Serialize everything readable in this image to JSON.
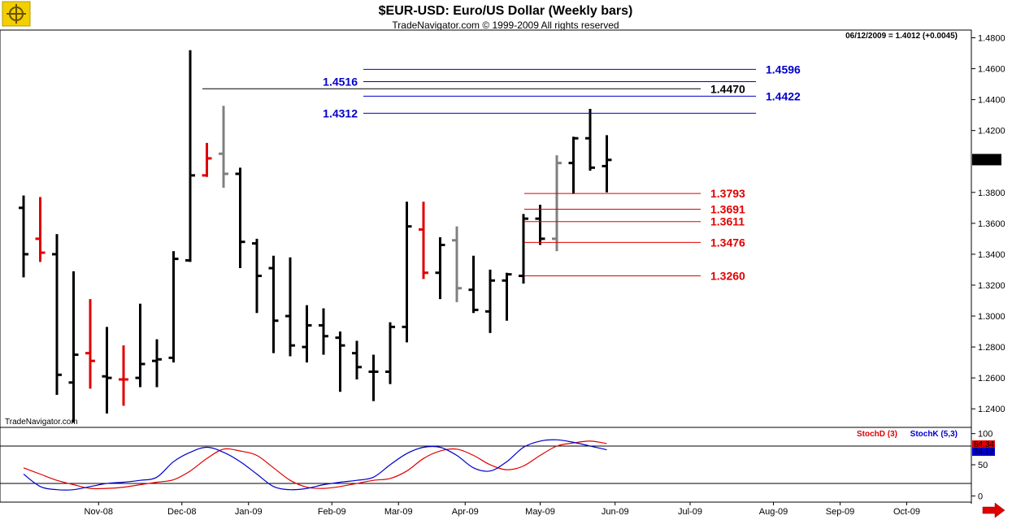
{
  "header": {
    "title": "$EUR-USD:  Euro/US Dollar  (Weekly bars)",
    "copyright": "TradeNavigator.com © 1999-2009 All rights reserved",
    "quote": "06/12/2009 = 1.4012 (+0.0045)",
    "watermark": "TradeNavigator.com"
  },
  "icons": {
    "logo": "ship-wheel-icon",
    "scroll": "red-arrow-right-icon"
  },
  "colors": {
    "up_bar": "#000000",
    "down_bar": "#e00000",
    "inside_bar": "#808080",
    "support_level": "#e00000",
    "resistance_level": "#0000cc",
    "stoch_d": "#e00000",
    "stoch_k": "#0000cc"
  },
  "chart_data": [
    {
      "type": "ohlc",
      "title": "$EUR-USD:  Euro/US Dollar  (Weekly bars)",
      "ylim": [
        1.228,
        1.485
      ],
      "yticks": [
        "1.4800",
        "1.4600",
        "1.4400",
        "1.4200",
        "1.4012",
        "1.3800",
        "1.3600",
        "1.3400",
        "1.3200",
        "1.3000",
        "1.2800",
        "1.2600",
        "1.2400"
      ],
      "ytick_values": [
        1.48,
        1.46,
        1.44,
        1.42,
        1.4012,
        1.38,
        1.36,
        1.34,
        1.32,
        1.3,
        1.28,
        1.26,
        1.24
      ],
      "last_price": "1.4012",
      "xticks": [
        "Nov-08",
        "Dec-08",
        "Jan-09",
        "Feb-09",
        "Mar-09",
        "Apr-09",
        "May-09",
        "Jun-09",
        "Jul-09",
        "Aug-09",
        "Sep-09",
        "Oct-09"
      ],
      "xtick_bar_index": [
        4.5,
        9.5,
        13.5,
        18.5,
        22.5,
        26.5,
        31,
        35.5,
        40,
        45,
        49,
        53
      ],
      "bars": [
        {
          "o": 1.37,
          "h": 1.378,
          "l": 1.325,
          "c": 1.34,
          "color": "black"
        },
        {
          "o": 1.35,
          "h": 1.377,
          "l": 1.335,
          "c": 1.341,
          "color": "red"
        },
        {
          "o": 1.34,
          "h": 1.353,
          "l": 1.249,
          "c": 1.262,
          "color": "black"
        },
        {
          "o": 1.257,
          "h": 1.329,
          "l": 1.231,
          "c": 1.275,
          "color": "black"
        },
        {
          "o": 1.276,
          "h": 1.311,
          "l": 1.253,
          "c": 1.271,
          "color": "red"
        },
        {
          "o": 1.261,
          "h": 1.293,
          "l": 1.237,
          "c": 1.26,
          "color": "black"
        },
        {
          "o": 1.259,
          "h": 1.281,
          "l": 1.242,
          "c": 1.259,
          "color": "red"
        },
        {
          "o": 1.26,
          "h": 1.308,
          "l": 1.254,
          "c": 1.269,
          "color": "black"
        },
        {
          "o": 1.271,
          "h": 1.285,
          "l": 1.254,
          "c": 1.272,
          "color": "black"
        },
        {
          "o": 1.273,
          "h": 1.342,
          "l": 1.27,
          "c": 1.337,
          "color": "black"
        },
        {
          "o": 1.336,
          "h": 1.472,
          "l": 1.335,
          "c": 1.391,
          "color": "black"
        },
        {
          "o": 1.391,
          "h": 1.412,
          "l": 1.39,
          "c": 1.402,
          "color": "red"
        },
        {
          "o": 1.405,
          "h": 1.436,
          "l": 1.383,
          "c": 1.392,
          "color": "gray"
        },
        {
          "o": 1.392,
          "h": 1.396,
          "l": 1.331,
          "c": 1.348,
          "color": "black"
        },
        {
          "o": 1.347,
          "h": 1.35,
          "l": 1.302,
          "c": 1.326,
          "color": "black"
        },
        {
          "o": 1.331,
          "h": 1.339,
          "l": 1.276,
          "c": 1.297,
          "color": "black"
        },
        {
          "o": 1.3,
          "h": 1.338,
          "l": 1.274,
          "c": 1.281,
          "color": "black"
        },
        {
          "o": 1.28,
          "h": 1.307,
          "l": 1.27,
          "c": 1.294,
          "color": "black"
        },
        {
          "o": 1.294,
          "h": 1.305,
          "l": 1.275,
          "c": 1.287,
          "color": "black"
        },
        {
          "o": 1.286,
          "h": 1.29,
          "l": 1.251,
          "c": 1.281,
          "color": "black"
        },
        {
          "o": 1.276,
          "h": 1.284,
          "l": 1.259,
          "c": 1.267,
          "color": "black"
        },
        {
          "o": 1.264,
          "h": 1.275,
          "l": 1.245,
          "c": 1.264,
          "color": "black"
        },
        {
          "o": 1.264,
          "h": 1.296,
          "l": 1.256,
          "c": 1.293,
          "color": "black"
        },
        {
          "o": 1.293,
          "h": 1.374,
          "l": 1.283,
          "c": 1.358,
          "color": "black"
        },
        {
          "o": 1.356,
          "h": 1.374,
          "l": 1.324,
          "c": 1.328,
          "color": "red"
        },
        {
          "o": 1.328,
          "h": 1.351,
          "l": 1.311,
          "c": 1.346,
          "color": "black"
        },
        {
          "o": 1.349,
          "h": 1.358,
          "l": 1.309,
          "c": 1.318,
          "color": "gray"
        },
        {
          "o": 1.317,
          "h": 1.339,
          "l": 1.302,
          "c": 1.304,
          "color": "black"
        },
        {
          "o": 1.303,
          "h": 1.33,
          "l": 1.289,
          "c": 1.323,
          "color": "black"
        },
        {
          "o": 1.323,
          "h": 1.328,
          "l": 1.297,
          "c": 1.327,
          "color": "black"
        },
        {
          "o": 1.326,
          "h": 1.366,
          "l": 1.321,
          "c": 1.363,
          "color": "black"
        },
        {
          "o": 1.363,
          "h": 1.372,
          "l": 1.346,
          "c": 1.35,
          "color": "black"
        },
        {
          "o": 1.35,
          "h": 1.404,
          "l": 1.342,
          "c": 1.399,
          "color": "gray"
        },
        {
          "o": 1.399,
          "h": 1.416,
          "l": 1.379,
          "c": 1.415,
          "color": "black"
        },
        {
          "o": 1.415,
          "h": 1.434,
          "l": 1.394,
          "c": 1.396,
          "color": "black"
        },
        {
          "o": 1.397,
          "h": 1.417,
          "l": 1.38,
          "c": 1.401,
          "color": "black"
        }
      ],
      "levels": [
        {
          "value": 1.4596,
          "label": "1.4596",
          "color": "blue",
          "x_from": "Jan-09",
          "label_side": "right"
        },
        {
          "value": 1.4516,
          "label": "1.4516",
          "color": "blue",
          "x_from": "Jan-09",
          "label_side": "left"
        },
        {
          "value": 1.447,
          "label": "1.4470",
          "color": "black",
          "x_from": "Dec-08",
          "label_side": "right"
        },
        {
          "value": 1.4422,
          "label": "1.4422",
          "color": "blue",
          "x_from": "Jan-09",
          "label_side": "right"
        },
        {
          "value": 1.4312,
          "label": "1.4312",
          "color": "blue",
          "x_from": "Jan-09",
          "label_side": "left"
        },
        {
          "value": 1.3793,
          "label": "1.3793",
          "color": "red",
          "x_from": "May-09",
          "label_side": "right"
        },
        {
          "value": 1.3691,
          "label": "1.3691",
          "color": "red",
          "x_from": "May-09",
          "label_side": "right"
        },
        {
          "value": 1.3611,
          "label": "1.3611",
          "color": "red",
          "x_from": "May-09",
          "label_side": "right"
        },
        {
          "value": 1.3476,
          "label": "1.3476",
          "color": "red",
          "x_from": "May-09",
          "label_side": "right"
        },
        {
          "value": 1.326,
          "label": "1.3260",
          "color": "red",
          "x_from": "May-09",
          "label_side": "right"
        }
      ]
    },
    {
      "type": "line",
      "title": "",
      "ylim": [
        -10,
        110
      ],
      "yticks": [
        "100",
        "50",
        "0"
      ],
      "ytick_values": [
        100,
        50,
        0
      ],
      "reference_lines": [
        80,
        20
      ],
      "series": [
        {
          "name": "StochD (3)",
          "color": "red",
          "values": [
            45,
            35,
            25,
            18,
            12,
            12,
            14,
            18,
            22,
            26,
            40,
            60,
            75,
            72,
            65,
            45,
            25,
            14,
            12,
            15,
            20,
            25,
            28,
            40,
            60,
            72,
            75,
            65,
            50,
            42,
            48,
            65,
            80,
            85,
            88,
            84
          ]
        },
        {
          "name": "StochK (5,3)",
          "color": "blue",
          "values": [
            35,
            15,
            10,
            10,
            15,
            20,
            22,
            25,
            30,
            55,
            70,
            78,
            70,
            55,
            35,
            15,
            10,
            12,
            18,
            22,
            25,
            30,
            50,
            68,
            78,
            78,
            65,
            45,
            40,
            55,
            78,
            88,
            90,
            86,
            80,
            74
          ]
        }
      ],
      "value_labels": [
        "84.34",
        "74.12"
      ]
    }
  ]
}
